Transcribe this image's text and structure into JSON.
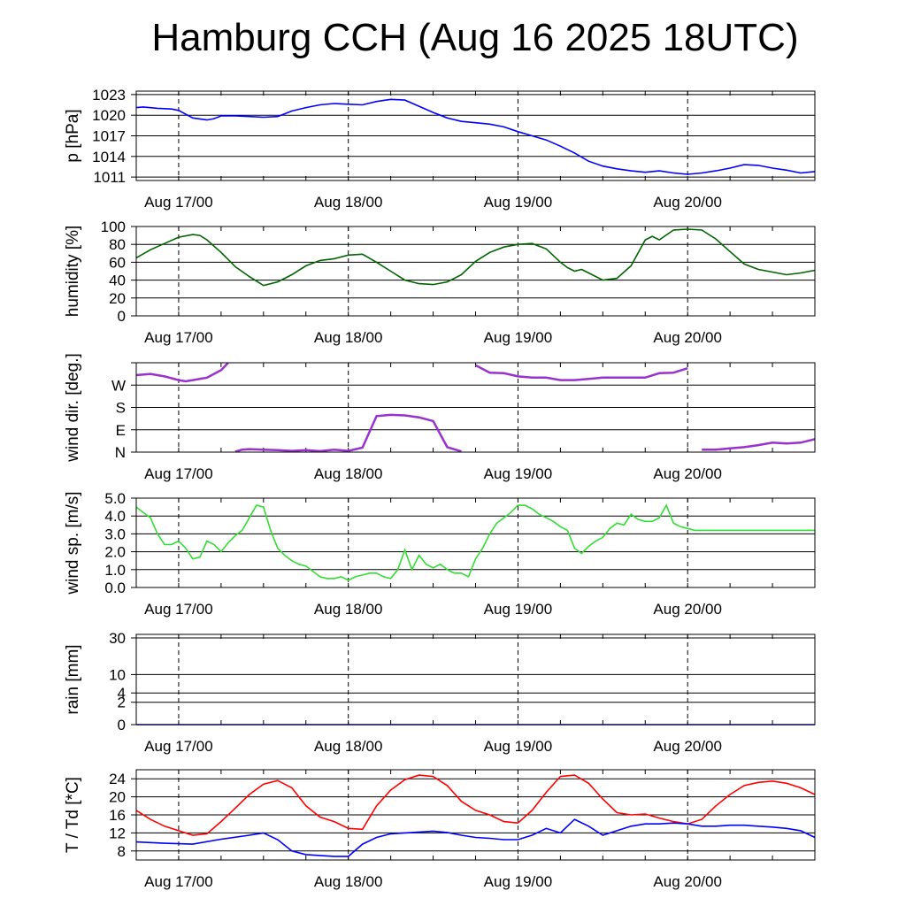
{
  "title": "Hamburg CCH (Aug 16 2025 18UTC)",
  "chart_data": [
    {
      "type": "line",
      "id": "pressure",
      "ylabel": "p [hPa]",
      "x_unit": "hours since Aug 16 18UTC",
      "xlim": [
        0,
        96
      ],
      "ylim": [
        1010.5,
        1023.5
      ],
      "yticks": [
        1011,
        1014,
        1017,
        1020,
        1023
      ],
      "xtick_labels": [
        "Aug 17/00",
        "Aug 18/00",
        "Aug 19/00",
        "Aug 20/00"
      ],
      "colors": [
        "#0000ff"
      ],
      "series": [
        {
          "x": [
            0,
            1,
            3,
            5,
            6,
            8,
            10,
            11,
            12,
            14,
            16,
            18,
            20,
            22,
            24,
            26,
            28,
            30,
            32,
            34,
            36,
            38,
            40,
            42,
            44,
            46,
            48,
            50,
            52,
            54,
            56,
            58,
            60,
            62,
            64,
            66,
            68,
            70,
            72,
            74,
            76,
            78,
            80,
            82,
            84,
            86,
            88,
            90,
            92,
            94,
            96
          ],
          "values": [
            1021.1,
            1021.2,
            1021.0,
            1020.9,
            1020.7,
            1019.6,
            1019.3,
            1019.5,
            1019.9,
            1019.9,
            1019.8,
            1019.7,
            1019.8,
            1020.6,
            1021.1,
            1021.5,
            1021.7,
            1021.6,
            1021.5,
            1022.0,
            1022.3,
            1022.2,
            1021.3,
            1020.4,
            1019.6,
            1019.1,
            1018.9,
            1018.7,
            1018.3,
            1017.6,
            1017.0,
            1016.4,
            1015.5,
            1014.5,
            1013.3,
            1012.6,
            1012.2,
            1011.9,
            1011.7,
            1011.9,
            1011.6,
            1011.4,
            1011.6,
            1011.9,
            1012.3,
            1012.8,
            1012.7,
            1012.3,
            1012.0,
            1011.6,
            1011.8
          ]
        }
      ]
    },
    {
      "type": "line",
      "id": "humidity",
      "ylabel": "humidity [%]",
      "xlim": [
        0,
        96
      ],
      "ylim": [
        0,
        100
      ],
      "yticks": [
        0,
        20,
        40,
        60,
        80,
        100
      ],
      "xtick_labels": [
        "Aug 17/00",
        "Aug 18/00",
        "Aug 19/00",
        "Aug 20/00"
      ],
      "colors": [
        "#006400"
      ],
      "series": [
        {
          "x": [
            0,
            2,
            4,
            6,
            8,
            9,
            10,
            12,
            14,
            16,
            18,
            20,
            22,
            24,
            26,
            28,
            30,
            32,
            34,
            36,
            38,
            40,
            42,
            44,
            46,
            48,
            50,
            52,
            54,
            56,
            58,
            60,
            61,
            62,
            63,
            64,
            66,
            68,
            70,
            72,
            73,
            74,
            76,
            78,
            80,
            82,
            84,
            86,
            88,
            90,
            92,
            94,
            96
          ],
          "values": [
            65,
            74,
            81,
            88,
            91,
            90,
            85,
            71,
            55,
            44,
            34,
            38,
            46,
            56,
            62,
            64,
            68,
            69,
            60,
            50,
            40,
            36,
            35,
            38,
            46,
            61,
            71,
            77,
            80,
            81,
            75,
            60,
            54,
            50,
            52,
            48,
            40,
            42,
            56,
            85,
            89,
            85,
            96,
            97,
            96,
            86,
            72,
            58,
            52,
            49,
            46,
            48,
            51
          ]
        }
      ]
    },
    {
      "type": "scatter",
      "id": "wind_direction",
      "ylabel": "wind dir. [deg.]",
      "xlim": [
        0,
        96
      ],
      "ylim": [
        0,
        360
      ],
      "yticks": [
        0,
        90,
        180,
        270,
        360
      ],
      "ytick_labels": [
        "N",
        "E",
        "S",
        "W",
        ""
      ],
      "xtick_labels": [
        "Aug 17/00",
        "Aug 18/00",
        "Aug 19/00",
        "Aug 20/00"
      ],
      "colors": [
        "#9932cc"
      ],
      "series": [
        {
          "x": [
            0,
            2,
            4,
            6,
            7,
            8,
            10,
            12,
            13,
            14,
            15,
            16,
            18,
            20,
            22,
            24,
            26,
            28,
            30,
            32,
            34,
            36,
            38,
            40,
            42,
            44,
            46,
            48,
            50,
            52,
            54,
            56,
            58,
            60,
            62,
            64,
            66,
            68,
            70,
            72,
            74,
            76,
            78,
            80,
            82,
            84,
            86,
            88,
            90,
            92,
            94,
            96
          ],
          "values": [
            310,
            315,
            305,
            290,
            285,
            290,
            300,
            330,
            360,
            2,
            10,
            12,
            10,
            8,
            5,
            8,
            4,
            10,
            5,
            18,
            145,
            150,
            148,
            140,
            125,
            20,
            3,
            350,
            320,
            318,
            305,
            300,
            300,
            290,
            290,
            295,
            300,
            300,
            300,
            300,
            318,
            320,
            338,
            10,
            10,
            15,
            20,
            28,
            38,
            35,
            38,
            52
          ]
        }
      ]
    },
    {
      "type": "line",
      "id": "wind_speed",
      "ylabel": "wind sp. [m/s]",
      "xlim": [
        0,
        96
      ],
      "ylim": [
        0,
        5
      ],
      "yticks": [
        0.0,
        1.0,
        2.0,
        3.0,
        4.0,
        5.0
      ],
      "ytick_labels": [
        "0.0",
        "1.0",
        "2.0",
        "3.0",
        "4.0",
        "5.0"
      ],
      "xtick_labels": [
        "Aug 17/00",
        "Aug 18/00",
        "Aug 19/00",
        "Aug 20/00"
      ],
      "colors": [
        "#33dd33"
      ],
      "series": [
        {
          "x": [
            0,
            1,
            2,
            3,
            4,
            5,
            6,
            7,
            8,
            9,
            10,
            11,
            12,
            13,
            14,
            15,
            16,
            17,
            18,
            19,
            20,
            21,
            22,
            23,
            24,
            25,
            26,
            27,
            28,
            29,
            30,
            31,
            32,
            33,
            34,
            35,
            36,
            37,
            38,
            39,
            40,
            41,
            42,
            43,
            44,
            45,
            46,
            47,
            48,
            49,
            50,
            51,
            52,
            53,
            54,
            55,
            56,
            57,
            58,
            59,
            60,
            61,
            62,
            63,
            64,
            65,
            66,
            67,
            68,
            69,
            70,
            71,
            72,
            73,
            74,
            75,
            76,
            77,
            78,
            79,
            80,
            81,
            82,
            83,
            84,
            85,
            86,
            87,
            88,
            89,
            90,
            91,
            92,
            93,
            94,
            95,
            96
          ],
          "values": [
            4.5,
            4.2,
            3.9,
            3.0,
            2.4,
            2.4,
            2.6,
            2.2,
            1.6,
            1.7,
            2.6,
            2.4,
            2.0,
            2.5,
            2.9,
            3.2,
            3.9,
            4.6,
            4.5,
            3.2,
            2.2,
            1.8,
            1.5,
            1.3,
            1.2,
            0.9,
            0.6,
            0.5,
            0.5,
            0.6,
            0.4,
            0.6,
            0.7,
            0.8,
            0.8,
            0.6,
            0.5,
            1.0,
            2.1,
            1.0,
            1.8,
            1.3,
            1.1,
            1.3,
            1.0,
            0.8,
            0.8,
            0.6,
            1.6,
            2.2,
            3.0,
            3.6,
            3.9,
            4.2,
            4.6,
            4.6,
            4.4,
            4.1,
            3.9,
            3.7,
            3.4,
            3.2,
            2.2,
            1.9,
            2.3,
            2.6,
            2.8,
            3.3,
            3.6,
            3.5,
            4.1,
            3.8,
            3.7,
            3.7,
            3.9,
            4.6,
            3.6,
            3.4,
            3.3,
            3.2,
            3.2,
            3.2,
            3.2,
            3.2,
            3.2,
            3.2,
            3.2,
            3.2,
            3.2,
            3.2,
            3.2,
            3.2,
            3.2,
            3.2,
            3.2,
            3.2,
            3.2
          ]
        }
      ]
    },
    {
      "type": "line",
      "id": "rain",
      "ylabel": "rain [mm]",
      "xlim": [
        0,
        96
      ],
      "yticks": [
        0,
        2,
        4,
        10,
        30
      ],
      "xtick_labels": [
        "Aug 17/00",
        "Aug 18/00",
        "Aug 19/00",
        "Aug 20/00"
      ],
      "colors": [
        "#0000ff"
      ],
      "series": [
        {
          "x": [
            0,
            96
          ],
          "values": [
            0,
            0
          ]
        }
      ]
    },
    {
      "type": "line",
      "id": "temperature_dewpoint",
      "ylabel": "T / Td [*C]",
      "xlim": [
        0,
        96
      ],
      "ylim": [
        6,
        26
      ],
      "yticks": [
        8,
        12,
        16,
        20,
        24
      ],
      "xtick_labels": [
        "Aug 17/00",
        "Aug 18/00",
        "Aug 19/00",
        "Aug 20/00"
      ],
      "colors": [
        "#ff0000",
        "#0000ff"
      ],
      "series": [
        {
          "x": [
            0,
            2,
            4,
            6,
            8,
            10,
            12,
            14,
            16,
            18,
            20,
            22,
            24,
            26,
            28,
            30,
            32,
            34,
            36,
            38,
            40,
            42,
            44,
            46,
            48,
            50,
            52,
            54,
            56,
            58,
            60,
            62,
            64,
            66,
            68,
            70,
            72,
            74,
            76,
            78,
            80,
            82,
            84,
            86,
            88,
            90,
            92,
            94,
            96
          ],
          "values": [
            17.0,
            15.0,
            13.5,
            12.5,
            11.5,
            11.8,
            14.5,
            17.5,
            20.5,
            22.8,
            23.6,
            22.0,
            18.0,
            15.5,
            14.5,
            13.0,
            12.8,
            18.0,
            21.5,
            23.8,
            24.8,
            24.5,
            22.5,
            19.0,
            17.0,
            16.0,
            14.5,
            14.2,
            17.0,
            21.0,
            24.5,
            24.8,
            23.0,
            19.5,
            16.5,
            16.0,
            16.2,
            15.3,
            14.5,
            14.0,
            15.0,
            18.0,
            20.5,
            22.5,
            23.2,
            23.5,
            23.0,
            22.0,
            20.5
          ]
        },
        {
          "x": [
            0,
            4,
            8,
            12,
            16,
            18,
            20,
            22,
            24,
            26,
            28,
            30,
            32,
            34,
            36,
            38,
            40,
            42,
            44,
            46,
            48,
            50,
            52,
            54,
            56,
            58,
            60,
            62,
            64,
            66,
            68,
            70,
            72,
            74,
            76,
            78,
            80,
            82,
            84,
            86,
            88,
            90,
            92,
            94,
            96
          ],
          "values": [
            10.0,
            9.7,
            9.5,
            10.6,
            11.5,
            12.0,
            10.5,
            8.0,
            7.2,
            7.0,
            6.8,
            6.8,
            9.5,
            11.0,
            11.8,
            12.0,
            12.2,
            12.4,
            12.1,
            11.5,
            11.0,
            10.8,
            10.5,
            10.5,
            11.5,
            13.0,
            12.0,
            15.0,
            13.5,
            11.5,
            12.5,
            13.5,
            14.0,
            14.0,
            14.2,
            14.0,
            13.5,
            13.5,
            13.7,
            13.7,
            13.5,
            13.3,
            13.0,
            12.5,
            11.0
          ]
        }
      ]
    }
  ]
}
